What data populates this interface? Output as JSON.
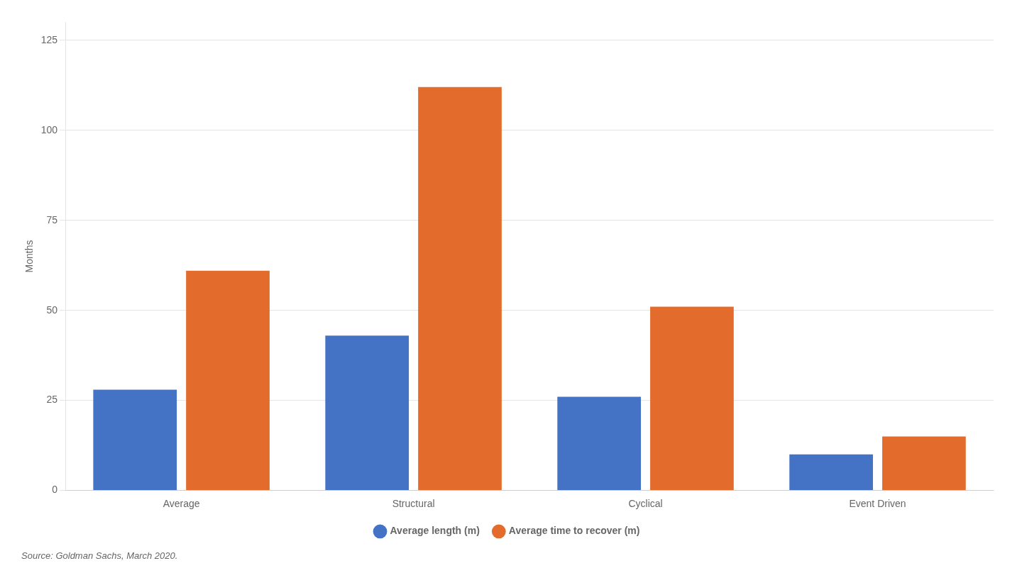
{
  "chart_data": {
    "type": "bar",
    "categories": [
      "Average",
      "Structural",
      "Cyclical",
      "Event Driven"
    ],
    "series": [
      {
        "name": "Average length (m)",
        "color": "#4472c4",
        "values": [
          28,
          43,
          26,
          10
        ]
      },
      {
        "name": "Average time to recover (m)",
        "color": "#e36c2d",
        "values": [
          61,
          112,
          51,
          15
        ]
      }
    ],
    "ylabel": "Months",
    "ylim": [
      0,
      130
    ],
    "yticks": [
      0,
      25,
      50,
      75,
      100,
      125
    ],
    "grid": true,
    "legend": "bottom",
    "annotation": "Source: Goldman Sachs, March 2020."
  }
}
